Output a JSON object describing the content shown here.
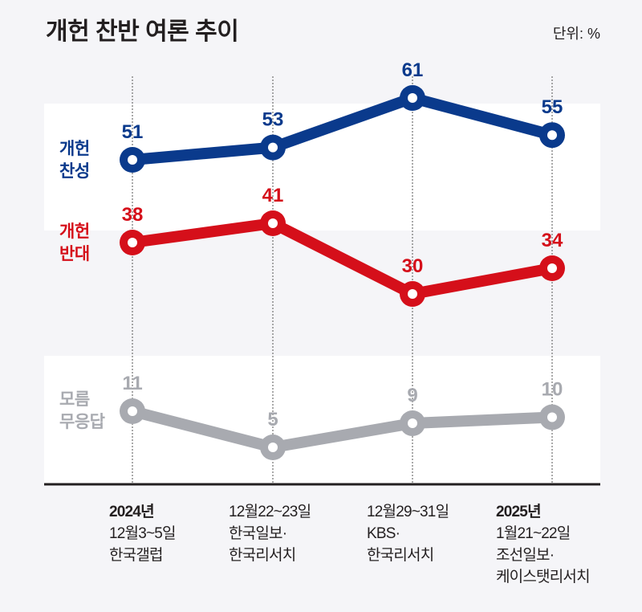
{
  "title": "개헌 찬반 여론 추이",
  "unit_label": "단위: %",
  "chart_data": {
    "type": "line",
    "title": "개헌 찬반 여론 추이",
    "unit": "%",
    "xlabel": "",
    "ylabel": "",
    "grid": "vertical dotted lines at each category",
    "categories": [
      {
        "year": "2024년",
        "date": "12월3~5일",
        "source": [
          "한국갤럽"
        ]
      },
      {
        "year": "",
        "date": "12월22~23일",
        "source": [
          "한국일보·",
          "한국리서치"
        ]
      },
      {
        "year": "",
        "date": "12월29~31일",
        "source": [
          "KBS·",
          "한국리서치"
        ]
      },
      {
        "year": "2025년",
        "date": "1월21~22일",
        "source": [
          "조선일보·",
          "케이스탯리서치"
        ]
      }
    ],
    "series": [
      {
        "name": "개헌 찬성",
        "label_lines": [
          "개헌",
          "찬성"
        ],
        "color": "#0a3a8c",
        "values": [
          51,
          53,
          61,
          55
        ]
      },
      {
        "name": "개헌 반대",
        "label_lines": [
          "개헌",
          "반대"
        ],
        "color": "#d50f1a",
        "values": [
          38,
          41,
          30,
          34
        ]
      },
      {
        "name": "모름 무응답",
        "label_lines": [
          "모름",
          "무응답"
        ],
        "color": "#a8aab0",
        "values": [
          11,
          5,
          9,
          10
        ]
      }
    ]
  }
}
